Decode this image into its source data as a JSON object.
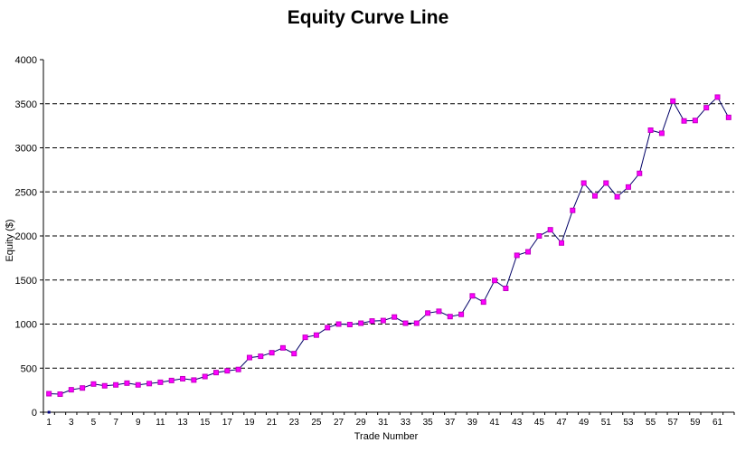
{
  "title": "Equity Curve Line",
  "colors": {
    "background": "#ffffff",
    "text": "#000000",
    "axis": "#000000",
    "gridline": "#000000",
    "line": "#000066",
    "marker_fill": "#FF00FF",
    "marker_border": "#C000C0",
    "origin_dot": "#000080"
  },
  "chart_data": {
    "type": "line",
    "title": "Equity Curve Line",
    "xlabel": "Trade Number",
    "ylabel": "Equity ($)",
    "legend": "none",
    "grid": "horizontal-dashed",
    "ylim": [
      0,
      4000
    ],
    "ytick_step": 500,
    "ytick_labels": [
      "0",
      "500",
      "1000",
      "1500",
      "2000",
      "2500",
      "3000",
      "3500",
      "4000"
    ],
    "xtick_labels": [
      "1",
      "3",
      "5",
      "7",
      "9",
      "11",
      "13",
      "15",
      "17",
      "19",
      "21",
      "23",
      "25",
      "27",
      "29",
      "31",
      "33",
      "35",
      "37",
      "39",
      "41",
      "43",
      "45",
      "47",
      "49",
      "51",
      "53",
      "55",
      "57",
      "59",
      "61"
    ],
    "x": [
      1,
      2,
      3,
      4,
      5,
      6,
      7,
      8,
      9,
      10,
      11,
      12,
      13,
      14,
      15,
      16,
      17,
      18,
      19,
      20,
      21,
      22,
      23,
      24,
      25,
      26,
      27,
      28,
      29,
      30,
      31,
      32,
      33,
      34,
      35,
      36,
      37,
      38,
      39,
      40,
      41,
      42,
      43,
      44,
      45,
      46,
      47,
      48,
      49,
      50,
      51,
      52,
      53,
      54,
      55,
      56,
      57,
      58,
      59,
      60,
      61,
      62
    ],
    "values": [
      210,
      205,
      255,
      275,
      320,
      300,
      310,
      330,
      310,
      325,
      340,
      360,
      380,
      365,
      405,
      450,
      470,
      485,
      620,
      635,
      675,
      730,
      665,
      850,
      875,
      960,
      1000,
      995,
      1010,
      1035,
      1040,
      1080,
      1010,
      1010,
      1125,
      1145,
      1085,
      1110,
      1320,
      1250,
      1495,
      1405,
      1780,
      1820,
      2000,
      2070,
      1920,
      2290,
      2600,
      2455,
      2600,
      2445,
      2555,
      2710,
      3200,
      3165,
      3530,
      3305,
      3310,
      3455,
      3575,
      3345
    ],
    "origin_marker": {
      "x": 1,
      "y": 0
    }
  }
}
